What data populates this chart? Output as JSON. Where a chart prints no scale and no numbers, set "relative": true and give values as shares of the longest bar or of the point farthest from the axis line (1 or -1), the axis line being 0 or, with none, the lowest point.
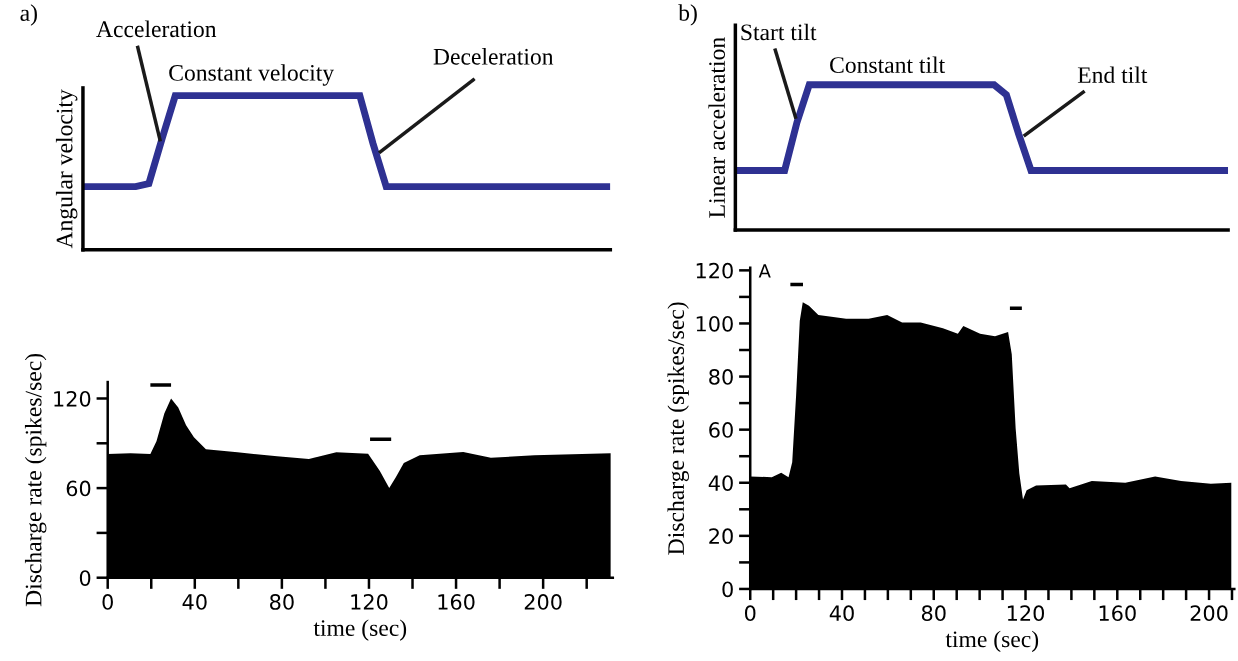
{
  "chart_data": [
    {
      "type": "line",
      "title": "a)",
      "ylabel": "Angular velocity",
      "relative": true,
      "annotations": [
        "Acceleration",
        "Constant velocity",
        "Deceleration"
      ],
      "categories": [
        null,
        null,
        null,
        null,
        null,
        null,
        null,
        null,
        null,
        null,
        null,
        null,
        null,
        null,
        null,
        null,
        null,
        null,
        null,
        null,
        null,
        null,
        null,
        null,
        null,
        null,
        null,
        null,
        null,
        null,
        null,
        null,
        null,
        null,
        null,
        null,
        null,
        null,
        null,
        null,
        null
      ],
      "series": [
        {
          "color": "#2e3192",
          "values": [
            0.41,
            0.41,
            0.41,
            0.41,
            0.41,
            0.43,
            0.72,
            1,
            1,
            1,
            1,
            1,
            1,
            1,
            1,
            1,
            1,
            1,
            1,
            1,
            1,
            1,
            0.69,
            0.41,
            0.41,
            0.41,
            0.41,
            0.41,
            0.41,
            0.41,
            0.41,
            0.41,
            0.41,
            0.41,
            0.41,
            0.41,
            0.41,
            0.41,
            0.41,
            0.41,
            0.41
          ]
        }
      ]
    },
    {
      "type": "area",
      "xlabel": "time (sec)",
      "ylabel": "Discharge rate (spikes/sec)",
      "xlim": [
        0,
        232
      ],
      "xticks": [
        0,
        {
          "value": 20,
          "label": null
        },
        40,
        {
          "value": 60,
          "label": null
        },
        80,
        {
          "value": 100,
          "label": null
        },
        120,
        {
          "value": 140,
          "label": null
        },
        160,
        {
          "value": 180,
          "label": null
        },
        200,
        {
          "value": 220,
          "label": null
        }
      ],
      "ylim": [
        0,
        131
      ],
      "yticks": [
        0,
        {
          "value": 30,
          "label": null
        },
        60,
        {
          "value": 90,
          "label": null
        },
        120
      ],
      "series": [
        {
          "color": "#000000",
          "x": [
            0,
            10.5,
            19.6,
            22.4,
            26,
            29.1,
            32.4,
            36,
            39.6,
            45.1,
            59.6,
            77.8,
            92.4,
            105,
            119.6,
            125,
            129.3,
            132.4,
            136,
            143.3,
            163.3,
            176,
            196,
            231
          ],
          "values": [
            82.9,
            83.4,
            82.9,
            91.4,
            110,
            120,
            113.9,
            102,
            94,
            86,
            84,
            81.3,
            79.5,
            84,
            83,
            71.5,
            60,
            67.5,
            76.8,
            82,
            84.2,
            80.3,
            82,
            83.4
          ]
        },
        {
          "type": "line",
          "color": "#000000",
          "x": [
            19.6,
            29.1
          ],
          "values": [
            129,
            129
          ]
        },
        {
          "type": "line",
          "color": "#000000",
          "x": [
            120.5,
            130.2
          ],
          "values": [
            92.7,
            92.7
          ]
        }
      ]
    },
    {
      "type": "line",
      "title": "b)",
      "ylabel": "Linear acceleration",
      "relative": true,
      "annotations": [
        "Start tilt",
        "Constant tilt",
        "End tilt"
      ],
      "categories": [
        null,
        null,
        null,
        null,
        null,
        null,
        null,
        null,
        null,
        null,
        null,
        null,
        null,
        null,
        null,
        null,
        null,
        null,
        null,
        null,
        null,
        null,
        null,
        null,
        null,
        null,
        null,
        null,
        null,
        null,
        null,
        null,
        null,
        null,
        null,
        null,
        null,
        null,
        null,
        null,
        null
      ],
      "series": [
        {
          "color": "#2e3192",
          "values": [
            0.41,
            0.41,
            0.41,
            0.41,
            0.41,
            0.74,
            1,
            1,
            1,
            1,
            1,
            1,
            1,
            1,
            1,
            1,
            1,
            1,
            1,
            1,
            1,
            1,
            0.93,
            0.66,
            0.41,
            0.41,
            0.41,
            0.41,
            0.41,
            0.41,
            0.41,
            0.41,
            0.41,
            0.41,
            0.41,
            0.41,
            0.41,
            0.41,
            0.41,
            0.41,
            0.41
          ]
        }
      ]
    },
    {
      "type": "area",
      "xlabel": "time (sec)",
      "ylabel": "Discharge rate (spikes/sec)",
      "annotations": [
        "A"
      ],
      "xlim": [
        0,
        211
      ],
      "xticks": [
        0,
        {
          "value": 10,
          "label": null
        },
        {
          "value": 20,
          "label": null
        },
        {
          "value": 30,
          "label": null
        },
        40,
        {
          "value": 50,
          "label": null
        },
        {
          "value": 60,
          "label": null
        },
        {
          "value": 70,
          "label": null
        },
        80,
        {
          "value": 90,
          "label": null
        },
        {
          "value": 100,
          "label": null
        },
        {
          "value": 110,
          "label": null
        },
        120,
        {
          "value": 130,
          "label": null
        },
        {
          "value": 140,
          "label": null
        },
        {
          "value": 150,
          "label": null
        },
        160,
        {
          "value": 170,
          "label": null
        },
        {
          "value": 180,
          "label": null
        },
        {
          "value": 190,
          "label": null
        },
        200,
        {
          "value": 210,
          "label": null
        }
      ],
      "ylim": [
        0,
        121
      ],
      "yticks": [
        0,
        {
          "value": 10,
          "label": null
        },
        20,
        {
          "value": 30,
          "label": null
        },
        40,
        {
          "value": 50,
          "label": null
        },
        60,
        {
          "value": 70,
          "label": null
        },
        80,
        {
          "value": 90,
          "label": null
        },
        100,
        {
          "value": 110,
          "label": null
        },
        120
      ],
      "series": [
        {
          "color": "#000000",
          "x": [
            0,
            9.4,
            13.5,
            16.7,
            18.3,
            20,
            21.6,
            22.9,
            25.6,
            29.7,
            35.4,
            41.8,
            51.6,
            59.7,
            66.2,
            74.3,
            84,
            90.5,
            92.9,
            100.2,
            106.7,
            112.4,
            114,
            115.7,
            117.3,
            118.9,
            120.5,
            124.6,
            137.6,
            139.2,
            148.9,
            163.5,
            176.5,
            187.8,
            200.8,
            209.7
          ],
          "values": [
            42.4,
            42.1,
            43.8,
            42.1,
            47.7,
            73,
            101,
            108,
            106.7,
            103.2,
            102.5,
            101.8,
            101.8,
            103.2,
            100.4,
            100.4,
            98.2,
            96.1,
            99,
            96.1,
            95.2,
            96.8,
            88.4,
            60.4,
            43.5,
            33.7,
            37.2,
            39,
            39.3,
            37.9,
            40.7,
            40,
            42.4,
            40.7,
            39.6,
            40
          ]
        },
        {
          "type": "line",
          "color": "#000000",
          "x": [
            17.5,
            23
          ],
          "values": [
            114.7,
            114.7
          ]
        },
        {
          "type": "line",
          "color": "#000000",
          "x": [
            113.2,
            118.4
          ],
          "values": [
            105.7,
            105.7
          ]
        }
      ]
    }
  ]
}
